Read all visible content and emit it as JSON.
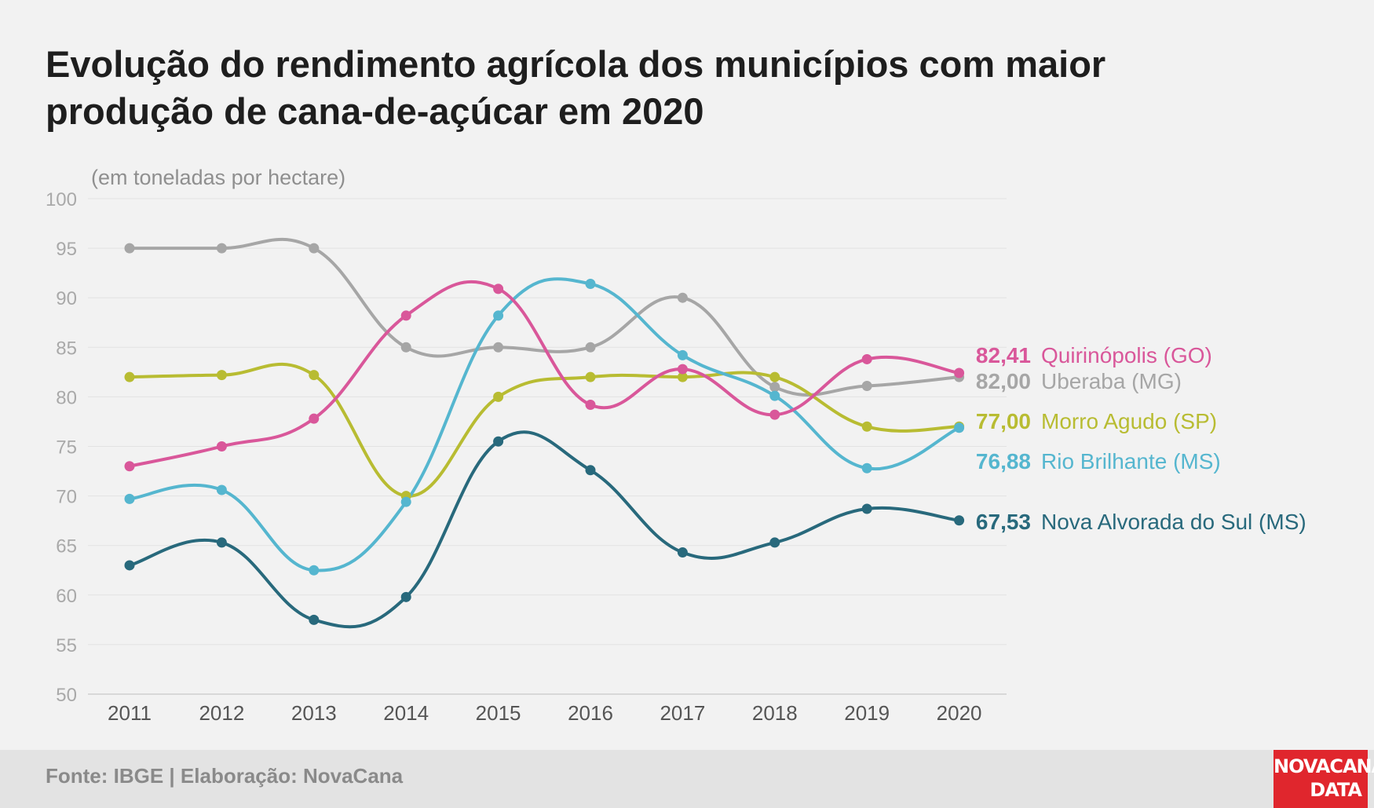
{
  "title": "Evolução do rendimento agrícola dos municípios com maior produção de cana-de-açúcar em 2020",
  "source": "Fonte: IBGE | Elaboração: NovaCana",
  "logo": {
    "line1": "NOVACANA",
    "line2": "DATA"
  },
  "chart_data": {
    "type": "line",
    "title": "Evolução do rendimento agrícola dos municípios com maior produção de cana-de-açúcar em 2020",
    "ylabel": "(em toneladas por hectare)",
    "xlabel": "",
    "x": [
      "2011",
      "2012",
      "2013",
      "2014",
      "2015",
      "2016",
      "2017",
      "2018",
      "2019",
      "2020"
    ],
    "ylim": [
      50,
      100
    ],
    "yticks": [
      50,
      55,
      60,
      65,
      70,
      75,
      80,
      85,
      90,
      95,
      100
    ],
    "grid": true,
    "legend": "right (end labels)",
    "series": [
      {
        "name": "Uberaba (MG)",
        "end_label": "82,00",
        "color": "#a6a6a6",
        "values": [
          95.0,
          95.0,
          95.0,
          85.0,
          85.0,
          85.0,
          90.0,
          81.0,
          81.1,
          82.0
        ]
      },
      {
        "name": "Morro Agudo (SP)",
        "end_label": "77,00",
        "color": "#b8bc32",
        "values": [
          82.0,
          82.2,
          82.2,
          70.0,
          80.0,
          82.0,
          82.0,
          82.0,
          77.0,
          77.0
        ]
      },
      {
        "name": "Rio Brilhante (MS)",
        "end_label": "76,88",
        "color": "#55b6cf",
        "values": [
          69.7,
          70.6,
          62.5,
          69.4,
          88.2,
          91.4,
          84.2,
          80.1,
          72.8,
          76.88
        ]
      },
      {
        "name": "Quirinópolis (GO)",
        "end_label": "82,41",
        "color": "#d9579a",
        "values": [
          73.0,
          75.0,
          77.8,
          88.2,
          90.9,
          79.2,
          82.8,
          78.2,
          83.8,
          82.41
        ]
      },
      {
        "name": "Nova Alvorada do Sul (MS)",
        "end_label": "67,53",
        "color": "#28697c",
        "values": [
          63.0,
          65.3,
          57.5,
          59.8,
          75.5,
          72.6,
          64.3,
          65.3,
          68.7,
          67.53
        ]
      }
    ]
  }
}
